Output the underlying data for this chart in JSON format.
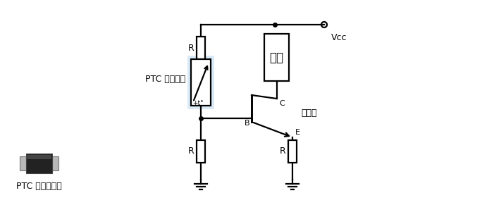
{
  "bg_color": "#ffffff",
  "line_color": "#000000",
  "ptc_bg": "#daeaf7",
  "label_ptc_resistor": "PTC 热敏电阻",
  "label_transistor": "晶体管",
  "label_load": "负荷",
  "label_vcc": "Vcc",
  "label_B": "B",
  "label_C": "C",
  "label_E": "E",
  "label_R": "R",
  "label_sensor": "PTC 温限传感器",
  "font_size_label": 9,
  "font_size_terminal": 8,
  "font_size_load": 12
}
